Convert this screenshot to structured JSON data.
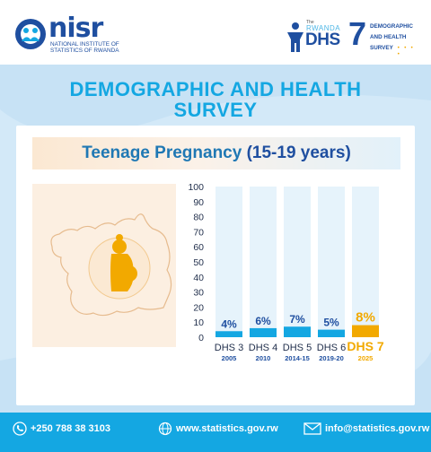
{
  "header": {
    "nisr_wordmark": "nisr",
    "nisr_subtitle_line1": "NATIONAL INSTITUTE OF",
    "nisr_subtitle_line2": "STATISTICS OF RWANDA",
    "dhs_the": "The",
    "dhs_rwanda": "RWANDA",
    "dhs_word": "DHS",
    "dhs_number": "7",
    "dhs_text_line1": "DEMOGRAPHIC",
    "dhs_text_line2": "AND HEALTH",
    "dhs_text_line3": "SURVEY"
  },
  "title_line1": "DEMOGRAPHIC AND HEALTH",
  "title_line2": "SURVEY",
  "subtitle_main": "Teenage Pregnancy",
  "subtitle_paren": "(15-19 years)",
  "colors": {
    "accent_blue": "#14a7e2",
    "dark_blue": "#1f4fa0",
    "highlight_orange": "#f2a900",
    "panel_blue": "#d3e9f8",
    "bar_track": "#e6f3fb"
  },
  "chart_data": {
    "type": "bar",
    "categories": [
      "DHS 3",
      "DHS 4",
      "DHS 5",
      "DHS 6",
      "DHS 7"
    ],
    "years": [
      "2005",
      "2010",
      "2014-15",
      "2019-20",
      "2025"
    ],
    "values": [
      4,
      6,
      7,
      5,
      8
    ],
    "value_labels": [
      "4%",
      "6%",
      "7%",
      "5%",
      "8%"
    ],
    "highlight_index": 4,
    "ylim": [
      0,
      100
    ],
    "yticks": [
      0,
      10,
      20,
      30,
      40,
      50,
      60,
      70,
      80,
      90,
      100
    ],
    "title": "Teenage Pregnancy (15-19 years)",
    "xlabel": "",
    "ylabel": "",
    "grid": false
  },
  "footer": {
    "phone": "+250 788 38 3103",
    "website": "www.statistics.gov.rw",
    "email": "info@statistics.gov.rw",
    "phone_icon": "phone-icon",
    "web_icon": "globe-icon",
    "email_icon": "envelope-icon"
  }
}
